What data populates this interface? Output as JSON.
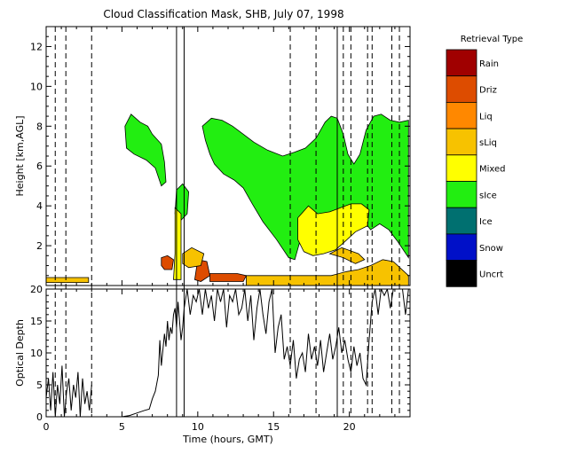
{
  "title": "Cloud Classification Mask, SHB, July 07, 1998",
  "chart_data": [
    {
      "type": "heatmap",
      "ylabel": "Height [km,AGL]",
      "xlim": [
        0,
        24
      ],
      "ylim": [
        0,
        13
      ],
      "x_ticks": [
        0,
        5,
        10,
        15,
        20
      ],
      "y_ticks": [
        2,
        4,
        6,
        8,
        10,
        12
      ],
      "legend": {
        "title": "Retrieval Type",
        "placement": "right",
        "entries": [
          {
            "label": "Rain",
            "color": "#a00000"
          },
          {
            "label": "Driz",
            "color": "#dd4c00"
          },
          {
            "label": "Liq",
            "color": "#ff8800"
          },
          {
            "label": "sLiq",
            "color": "#f7c200"
          },
          {
            "label": "Mixed",
            "color": "#ffff00"
          },
          {
            "label": "sIce",
            "color": "#22ee11"
          },
          {
            "label": "Ice",
            "color": "#007070"
          },
          {
            "label": "Snow",
            "color": "#0010c8"
          },
          {
            "label": "Uncrt",
            "color": "#000000"
          }
        ]
      },
      "regions": [
        {
          "class": "sIce",
          "poly": [
            [
              5.2,
              8.0
            ],
            [
              5.6,
              8.6
            ],
            [
              6.2,
              8.2
            ],
            [
              6.7,
              8.0
            ],
            [
              7.0,
              7.6
            ],
            [
              7.6,
              7.1
            ],
            [
              7.8,
              6.2
            ],
            [
              7.9,
              5.2
            ],
            [
              7.6,
              5.0
            ],
            [
              7.2,
              5.9
            ],
            [
              6.6,
              6.3
            ],
            [
              5.8,
              6.6
            ],
            [
              5.3,
              6.9
            ]
          ]
        },
        {
          "class": "sIce",
          "poly": [
            [
              8.6,
              4.8
            ],
            [
              9.0,
              5.1
            ],
            [
              9.4,
              4.7
            ],
            [
              9.3,
              3.6
            ],
            [
              8.8,
              3.2
            ],
            [
              8.5,
              3.6
            ]
          ]
        },
        {
          "class": "sIce",
          "poly": [
            [
              10.3,
              8.0
            ],
            [
              10.9,
              8.4
            ],
            [
              11.6,
              8.3
            ],
            [
              12.3,
              8.0
            ],
            [
              13.0,
              7.6
            ],
            [
              13.7,
              7.2
            ],
            [
              14.6,
              6.8
            ],
            [
              15.6,
              6.5
            ],
            [
              16.4,
              6.7
            ],
            [
              17.1,
              6.9
            ],
            [
              17.8,
              7.4
            ],
            [
              18.4,
              8.2
            ],
            [
              18.8,
              8.5
            ],
            [
              19.2,
              8.4
            ],
            [
              19.6,
              7.6
            ],
            [
              19.9,
              6.6
            ],
            [
              20.3,
              6.1
            ],
            [
              20.7,
              6.6
            ],
            [
              21.1,
              7.8
            ],
            [
              21.6,
              8.5
            ],
            [
              22.1,
              8.6
            ],
            [
              22.7,
              8.3
            ],
            [
              23.3,
              8.2
            ],
            [
              23.9,
              8.3
            ],
            [
              23.9,
              1.4
            ],
            [
              23.2,
              2.2
            ],
            [
              22.6,
              2.8
            ],
            [
              22.0,
              3.1
            ],
            [
              21.4,
              2.8
            ],
            [
              20.9,
              3.3
            ],
            [
              20.2,
              3.6
            ],
            [
              19.6,
              3.8
            ],
            [
              18.8,
              3.7
            ],
            [
              18.2,
              3.6
            ],
            [
              17.6,
              3.3
            ],
            [
              17.1,
              3.0
            ],
            [
              16.8,
              2.4
            ],
            [
              16.4,
              1.3
            ],
            [
              16.0,
              1.4
            ],
            [
              15.2,
              2.3
            ],
            [
              14.3,
              3.2
            ],
            [
              13.6,
              4.1
            ],
            [
              13.0,
              4.9
            ],
            [
              12.4,
              5.3
            ],
            [
              11.7,
              5.6
            ],
            [
              11.1,
              6.1
            ],
            [
              10.8,
              6.6
            ],
            [
              10.5,
              7.3
            ]
          ]
        },
        {
          "class": "Mixed",
          "poly": [
            [
              16.6,
              3.4
            ],
            [
              17.3,
              4.0
            ],
            [
              17.9,
              3.6
            ],
            [
              18.7,
              3.7
            ],
            [
              19.4,
              3.9
            ],
            [
              20.1,
              4.1
            ],
            [
              20.8,
              4.1
            ],
            [
              21.3,
              3.8
            ],
            [
              21.2,
              3.0
            ],
            [
              20.4,
              2.7
            ],
            [
              19.7,
              2.2
            ],
            [
              19.1,
              1.8
            ],
            [
              18.3,
              1.6
            ],
            [
              17.6,
              1.5
            ],
            [
              17.0,
              1.7
            ],
            [
              16.6,
              2.3
            ]
          ]
        },
        {
          "class": "Mixed",
          "poly": [
            [
              8.5,
              3.9
            ],
            [
              8.9,
              3.6
            ],
            [
              8.9,
              0.3
            ],
            [
              8.4,
              0.3
            ],
            [
              8.5,
              1.6
            ]
          ]
        },
        {
          "class": "Driz",
          "poly": [
            [
              7.6,
              1.4
            ],
            [
              8.0,
              1.5
            ],
            [
              8.4,
              1.3
            ],
            [
              8.3,
              0.8
            ],
            [
              7.8,
              0.8
            ],
            [
              7.6,
              1.0
            ]
          ]
        },
        {
          "class": "Driz",
          "poly": [
            [
              10.0,
              1.3
            ],
            [
              10.6,
              1.2
            ],
            [
              10.8,
              0.5
            ],
            [
              10.2,
              0.2
            ],
            [
              9.8,
              0.3
            ]
          ]
        },
        {
          "class": "Driz",
          "poly": [
            [
              10.8,
              0.6
            ],
            [
              12.6,
              0.6
            ],
            [
              13.2,
              0.5
            ],
            [
              13.0,
              0.2
            ],
            [
              10.8,
              0.2
            ]
          ]
        },
        {
          "class": "sLiq",
          "poly": [
            [
              0.0,
              0.4
            ],
            [
              2.8,
              0.4
            ],
            [
              2.8,
              0.15
            ],
            [
              0.0,
              0.15
            ]
          ]
        },
        {
          "class": "sLiq",
          "poly": [
            [
              9.0,
              1.6
            ],
            [
              9.6,
              1.9
            ],
            [
              10.4,
              1.6
            ],
            [
              10.2,
              1.0
            ],
            [
              9.4,
              0.9
            ],
            [
              9.0,
              1.1
            ]
          ]
        },
        {
          "class": "sLiq",
          "poly": [
            [
              13.2,
              0.5
            ],
            [
              18.8,
              0.5
            ],
            [
              19.8,
              0.7
            ],
            [
              20.6,
              0.8
            ],
            [
              21.4,
              1.0
            ],
            [
              22.2,
              1.3
            ],
            [
              22.9,
              1.2
            ],
            [
              23.9,
              0.5
            ],
            [
              23.9,
              0.0
            ],
            [
              13.2,
              0.0
            ]
          ]
        },
        {
          "class": "sLiq",
          "poly": [
            [
              18.7,
              1.6
            ],
            [
              19.6,
              1.4
            ],
            [
              20.4,
              1.1
            ],
            [
              21.0,
              1.3
            ],
            [
              20.6,
              1.6
            ],
            [
              19.5,
              1.9
            ]
          ]
        }
      ],
      "vertical_lines": {
        "solid": [
          8.6,
          9.1,
          19.2
        ],
        "dashed": [
          0.6,
          1.3,
          3.0,
          16.1,
          17.8,
          19.6,
          20.1,
          21.2,
          21.5,
          22.8,
          23.3
        ]
      }
    },
    {
      "type": "line",
      "xlabel": "Time (hours, GMT)",
      "ylabel": "Optical Depth",
      "xlim": [
        0,
        24
      ],
      "ylim": [
        0,
        20
      ],
      "x_ticks": [
        0,
        5,
        10,
        15,
        20
      ],
      "y_ticks": [
        0,
        5,
        10,
        15,
        20
      ],
      "series": [
        {
          "color": "#000000",
          "x": [
            0.0,
            0.15,
            0.3,
            0.45,
            0.6,
            0.75,
            0.9,
            1.05,
            1.2,
            1.35,
            1.5,
            1.65,
            1.8,
            1.95,
            2.1,
            2.25,
            2.4,
            2.55,
            2.7,
            2.85,
            3.0,
            5.0,
            5.5,
            6.0,
            6.5,
            6.8,
            7.0,
            7.2,
            7.4,
            7.5,
            7.6,
            7.8,
            7.9,
            8.0,
            8.1,
            8.2,
            8.3,
            8.4,
            8.5,
            8.6,
            8.7,
            8.8,
            8.9,
            9.0,
            9.1,
            9.3,
            9.5,
            9.7,
            9.9,
            10.1,
            10.3,
            10.5,
            10.7,
            10.9,
            11.1,
            11.3,
            11.5,
            11.7,
            11.9,
            12.1,
            12.3,
            12.5,
            12.7,
            12.9,
            13.1,
            13.3,
            13.5,
            13.7,
            13.9,
            14.1,
            14.3,
            14.5,
            14.7,
            14.9,
            15.1,
            15.3,
            15.5,
            15.7,
            15.9,
            16.1,
            16.3,
            16.5,
            16.7,
            16.9,
            17.1,
            17.3,
            17.5,
            17.7,
            17.9,
            18.1,
            18.3,
            18.5,
            18.7,
            18.9,
            19.1,
            19.3,
            19.5,
            19.7,
            19.9,
            20.1,
            20.3,
            20.5,
            20.7,
            20.9,
            21.1,
            21.3,
            21.5,
            21.7,
            21.9,
            22.1,
            22.3,
            22.5,
            22.7,
            22.9,
            23.1,
            23.3,
            23.5,
            23.7,
            23.9
          ],
          "values": [
            3,
            6,
            1,
            7,
            0,
            5,
            2,
            8,
            0,
            4,
            6,
            1,
            5,
            3,
            7,
            0,
            6,
            2,
            4,
            1,
            5,
            0,
            0.2,
            0.6,
            1,
            1.2,
            2.8,
            4,
            6.5,
            12,
            8,
            13,
            11,
            15,
            12,
            14,
            13,
            16,
            17,
            14,
            18,
            15,
            12,
            14,
            17,
            20,
            16,
            19,
            18,
            20,
            16,
            20,
            17,
            19,
            15,
            20,
            18,
            20,
            14,
            19,
            18,
            20,
            16,
            17,
            20,
            15,
            19,
            12,
            17,
            20,
            16,
            13,
            18,
            20,
            10,
            14,
            16,
            9,
            11,
            8,
            12,
            6,
            9,
            10,
            7,
            13,
            9,
            11,
            8,
            12,
            7,
            10,
            13,
            9,
            11,
            14,
            10,
            12,
            9,
            7,
            11,
            8,
            10,
            6,
            5,
            12,
            18,
            20,
            16,
            20,
            19,
            20,
            17,
            20,
            20,
            20,
            20,
            16,
            20
          ]
        }
      ]
    }
  ]
}
